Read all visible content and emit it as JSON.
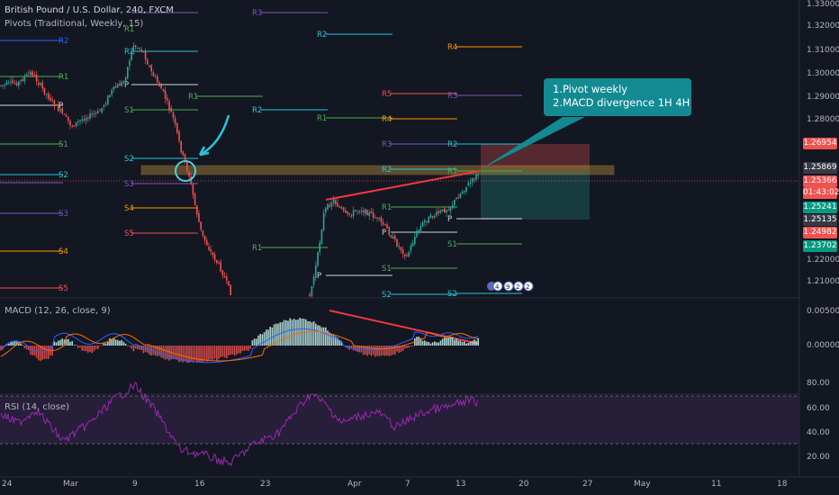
{
  "header": {
    "title": "British Pound / U.S. Dollar, 240, FXCM",
    "pivots_label": "Pivots (Traditional, Weekly, 15)"
  },
  "note": {
    "line1": "1.Pivot weekly",
    "line2": "2.MACD divergence 1H 4H"
  },
  "macd_label": "MACD (12, 26, close, 9)",
  "rsi_label": "RSI (14, close)",
  "price_ticks": [
    "1.33000",
    "1.32000",
    "1.31000",
    "1.30000",
    "1.29000",
    "1.28000",
    "1.22000",
    "1.21000"
  ],
  "macd_ticks": [
    "0.00500",
    "0.00000"
  ],
  "rsi_ticks": [
    "80.00",
    "60.00",
    "40.00",
    "20.00"
  ],
  "time_ticks": [
    "24",
    "Mar",
    "9",
    "16",
    "23",
    "Apr",
    "7",
    "13",
    "20",
    "27",
    "May",
    "11",
    "18"
  ],
  "price_tags": [
    {
      "label": "1.26954",
      "color": "#ef5350"
    },
    {
      "label": "1.25869",
      "color": "#363a45"
    },
    {
      "label": "1.25366",
      "color": "#ef5350"
    },
    {
      "label": "01:43:02",
      "color": "#ef5350"
    },
    {
      "label": "1.25241",
      "color": "#089981"
    },
    {
      "label": "1.25135",
      "color": "#363a45"
    },
    {
      "label": "1.24982",
      "color": "#ef5350"
    },
    {
      "label": "1.23702",
      "color": "#089981"
    }
  ],
  "pivot_labels": {
    "block1": [
      "R2",
      "R1",
      "P",
      "S1",
      "S2",
      "S3",
      "S4",
      "S5"
    ],
    "block2": [
      "R3",
      "R2",
      "R1",
      "P",
      "S1",
      "S2",
      "S3",
      "S4",
      "S5"
    ],
    "block3": [
      "R2",
      "R1"
    ],
    "block4": [
      "R5",
      "R4",
      "R3",
      "R2",
      "R1",
      "P",
      "S1",
      "S2"
    ],
    "block5": [
      "R4",
      "R3",
      "R2",
      "R1",
      "P",
      "S1",
      "S2"
    ],
    "block6": [
      "R3"
    ]
  },
  "event_badges": [
    "4",
    "9",
    "2",
    "2"
  ],
  "colors": {
    "up": "#26a69a",
    "down": "#ef5350",
    "accent": "#138a92",
    "rsi": "#9c27b0"
  },
  "chart_data": {
    "type": "candlestick",
    "symbol": "GBPUSD",
    "timeframe": "240",
    "price_range": [
      1.205,
      1.335
    ],
    "key_levels": [
      1.26954,
      1.25869,
      1.25366,
      1.25241,
      1.25135,
      1.24982,
      1.23702
    ],
    "macd_range": [
      -0.004,
      0.007
    ],
    "rsi_range": [
      10,
      90
    ],
    "rsi_levels": [
      70,
      30
    ]
  }
}
